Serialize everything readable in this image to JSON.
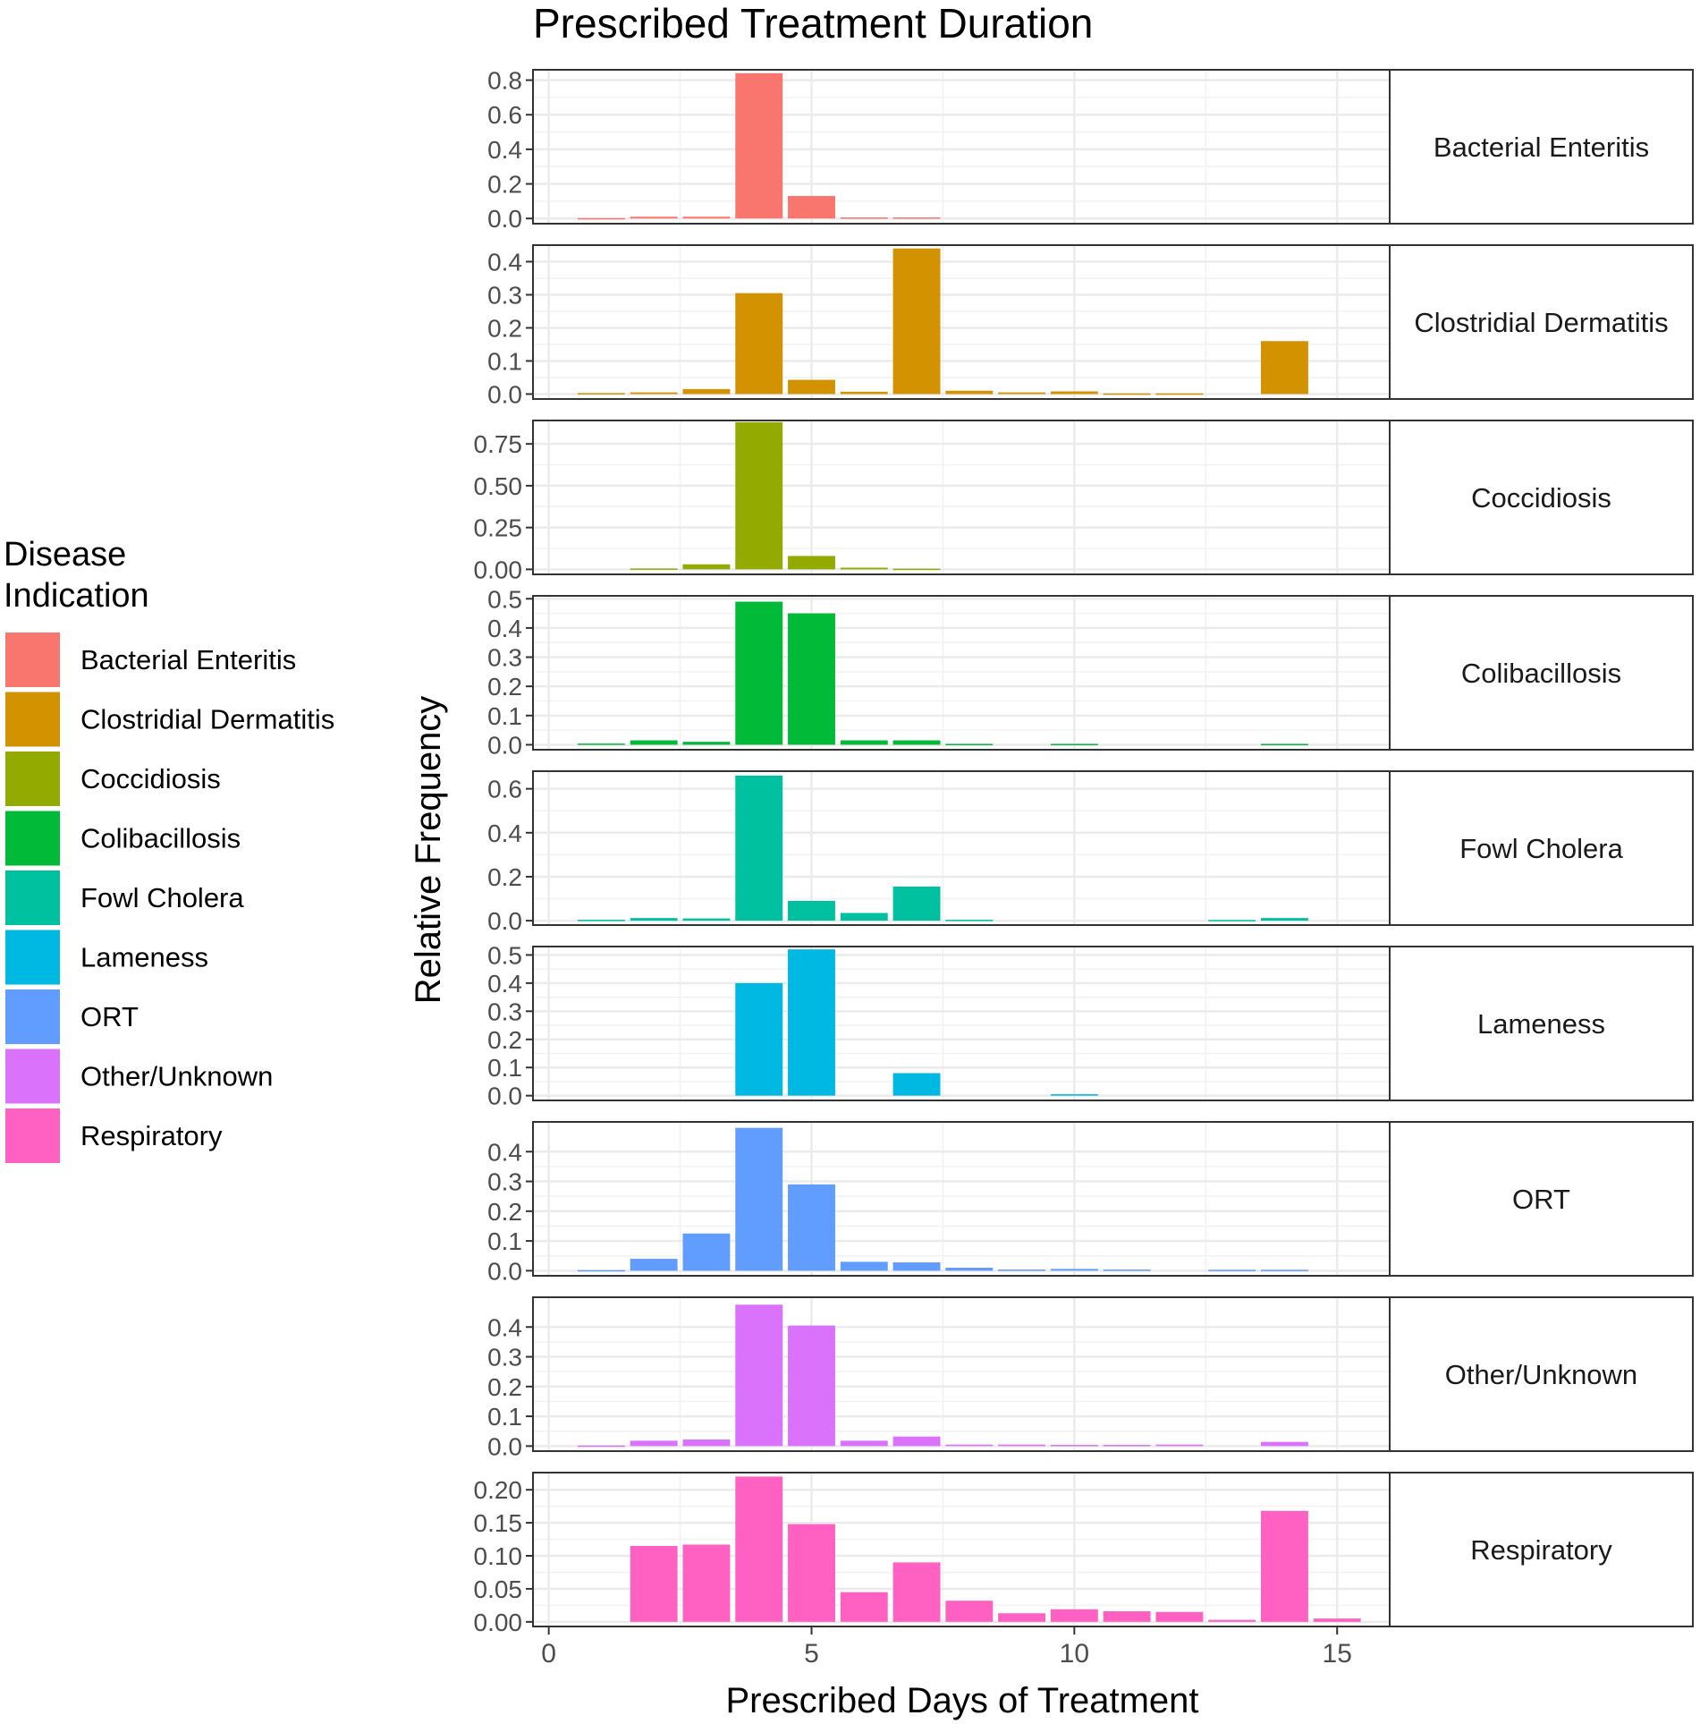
{
  "chart_data": {
    "type": "bar",
    "title": "Prescribed Treatment Duration",
    "xlabel": "Prescribed Days of Treatment",
    "ylabel": "Relative Frequency",
    "xlim": [
      -0.3,
      16
    ],
    "xticks": [
      0,
      5,
      10,
      15
    ],
    "x": [
      1,
      2,
      3,
      4,
      5,
      6,
      7,
      8,
      9,
      10,
      11,
      12,
      13,
      14,
      15
    ],
    "legend": {
      "title": [
        "Disease",
        "Indication"
      ],
      "position": "left"
    },
    "panels": [
      {
        "name": "Bacterial Enteritis",
        "color": "#F8766D",
        "ylim": [
          -0.03,
          0.86
        ],
        "yticks": [
          0,
          0.2,
          0.4,
          0.6,
          0.8
        ],
        "ytick_labels": [
          "0.0",
          "0.2",
          "0.4",
          "0.6",
          "0.8"
        ],
        "values": [
          0.002,
          0.01,
          0.01,
          0.84,
          0.13,
          0.006,
          0.006,
          0,
          0,
          0,
          0,
          0,
          0,
          0,
          0
        ]
      },
      {
        "name": "Clostridial Dermatitis",
        "color": "#D39200",
        "ylim": [
          -0.015,
          0.45
        ],
        "yticks": [
          0,
          0.1,
          0.2,
          0.3,
          0.4
        ],
        "ytick_labels": [
          "0.0",
          "0.1",
          "0.2",
          "0.3",
          "0.4"
        ],
        "values": [
          0.003,
          0.005,
          0.015,
          0.305,
          0.043,
          0.007,
          0.44,
          0.01,
          0.005,
          0.008,
          0.002,
          0.002,
          0,
          0.16,
          0
        ]
      },
      {
        "name": "Coccidiosis",
        "color": "#93AA00",
        "ylim": [
          -0.03,
          0.89
        ],
        "yticks": [
          0,
          0.25,
          0.5,
          0.75
        ],
        "ytick_labels": [
          "0.00",
          "0.25",
          "0.50",
          "0.75"
        ],
        "values": [
          0,
          0.005,
          0.03,
          0.88,
          0.08,
          0.01,
          0.004,
          0,
          0,
          0,
          0,
          0,
          0,
          0,
          0
        ]
      },
      {
        "name": "Colibacillosis",
        "color": "#00BA38",
        "ylim": [
          -0.017,
          0.51
        ],
        "yticks": [
          0,
          0.1,
          0.2,
          0.3,
          0.4,
          0.5
        ],
        "ytick_labels": [
          "0.0",
          "0.1",
          "0.2",
          "0.3",
          "0.4",
          "0.5"
        ],
        "values": [
          0.004,
          0.015,
          0.01,
          0.49,
          0.45,
          0.015,
          0.015,
          0.003,
          0,
          0.003,
          0,
          0,
          0,
          0.003,
          0
        ]
      },
      {
        "name": "Fowl Cholera",
        "color": "#00C19F",
        "ylim": [
          -0.02,
          0.68
        ],
        "yticks": [
          0,
          0.2,
          0.4,
          0.6
        ],
        "ytick_labels": [
          "0.0",
          "0.2",
          "0.4",
          "0.6"
        ],
        "values": [
          0.004,
          0.012,
          0.01,
          0.66,
          0.09,
          0.035,
          0.155,
          0.004,
          0,
          0,
          0,
          0,
          0.003,
          0.012,
          0
        ]
      },
      {
        "name": "Lameness",
        "color": "#00B9E3",
        "ylim": [
          -0.017,
          0.53
        ],
        "yticks": [
          0,
          0.1,
          0.2,
          0.3,
          0.4,
          0.5
        ],
        "ytick_labels": [
          "0.0",
          "0.1",
          "0.2",
          "0.3",
          "0.4",
          "0.5"
        ],
        "values": [
          0,
          0,
          0,
          0.4,
          0.52,
          0,
          0.08,
          0,
          0,
          0.005,
          0,
          0,
          0,
          0,
          0
        ]
      },
      {
        "name": "ORT",
        "color": "#619CFF",
        "ylim": [
          -0.017,
          0.5
        ],
        "yticks": [
          0,
          0.1,
          0.2,
          0.3,
          0.4
        ],
        "ytick_labels": [
          "0.0",
          "0.1",
          "0.2",
          "0.3",
          "0.4"
        ],
        "values": [
          0.002,
          0.04,
          0.125,
          0.48,
          0.29,
          0.03,
          0.028,
          0.01,
          0.004,
          0.006,
          0.004,
          0,
          0.003,
          0.003,
          0
        ]
      },
      {
        "name": "Other/Unknown",
        "color": "#DB72FB",
        "ylim": [
          -0.017,
          0.5
        ],
        "yticks": [
          0,
          0.1,
          0.2,
          0.3,
          0.4
        ],
        "ytick_labels": [
          "0.0",
          "0.1",
          "0.2",
          "0.3",
          "0.4"
        ],
        "values": [
          0.002,
          0.018,
          0.022,
          0.475,
          0.405,
          0.018,
          0.032,
          0.005,
          0.005,
          0.004,
          0.004,
          0.005,
          0,
          0.014,
          0
        ]
      },
      {
        "name": "Respiratory",
        "color": "#FF61C3",
        "ylim": [
          -0.007,
          0.226
        ],
        "yticks": [
          0,
          0.05,
          0.1,
          0.15,
          0.2
        ],
        "ytick_labels": [
          "0.00",
          "0.05",
          "0.10",
          "0.15",
          "0.20"
        ],
        "values": [
          0,
          0.115,
          0.117,
          0.22,
          0.148,
          0.045,
          0.09,
          0.032,
          0.013,
          0.019,
          0.016,
          0.015,
          0.003,
          0.168,
          0.005
        ]
      }
    ]
  }
}
